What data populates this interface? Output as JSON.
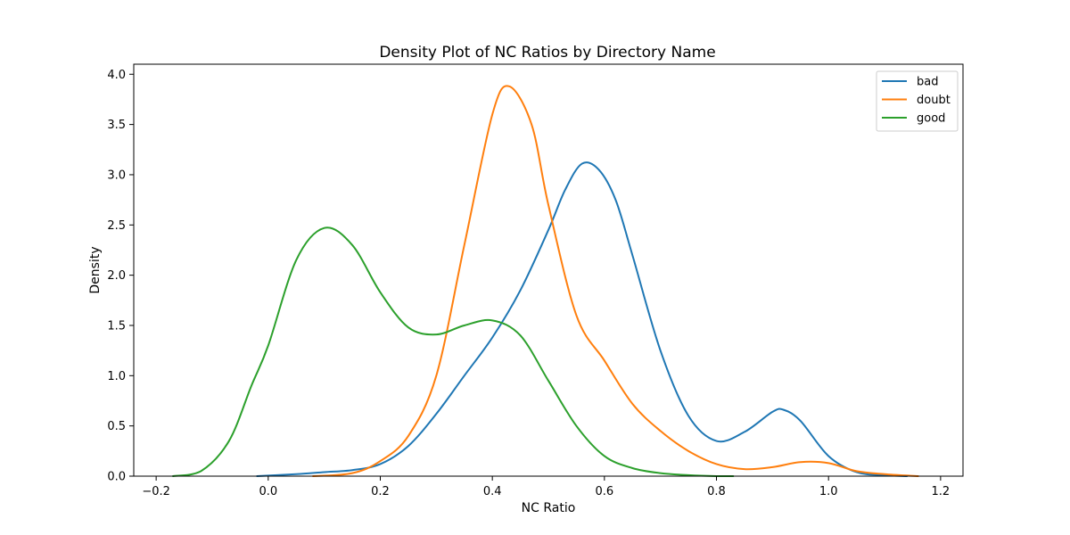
{
  "chart_data": {
    "type": "line",
    "title": "Density Plot of NC Ratios by Directory Name",
    "xlabel": "NC Ratio",
    "ylabel": "Density",
    "xlim": [
      -0.24,
      1.24
    ],
    "ylim": [
      0,
      4.1
    ],
    "xticks": [
      -0.2,
      0.0,
      0.2,
      0.4,
      0.6,
      0.8,
      1.0,
      1.2
    ],
    "xtick_labels": [
      "−0.2",
      "0.0",
      "0.2",
      "0.4",
      "0.6",
      "0.8",
      "1.0",
      "1.2"
    ],
    "yticks": [
      0.0,
      0.5,
      1.0,
      1.5,
      2.0,
      2.5,
      3.0,
      3.5,
      4.0
    ],
    "ytick_labels": [
      "0.0",
      "0.5",
      "1.0",
      "1.5",
      "2.0",
      "2.5",
      "3.0",
      "3.5",
      "4.0"
    ],
    "grid": false,
    "legend_position": "top-right",
    "series": [
      {
        "name": "bad",
        "color": "#1f77b4",
        "x": [
          -0.02,
          0.05,
          0.1,
          0.15,
          0.2,
          0.25,
          0.3,
          0.35,
          0.4,
          0.45,
          0.5,
          0.53,
          0.56,
          0.59,
          0.62,
          0.65,
          0.7,
          0.75,
          0.8,
          0.85,
          0.9,
          0.92,
          0.95,
          1.0,
          1.05,
          1.1,
          1.14
        ],
        "y": [
          0.0,
          0.02,
          0.04,
          0.06,
          0.12,
          0.3,
          0.62,
          1.0,
          1.38,
          1.85,
          2.45,
          2.85,
          3.11,
          3.05,
          2.75,
          2.2,
          1.25,
          0.6,
          0.35,
          0.44,
          0.64,
          0.66,
          0.55,
          0.2,
          0.04,
          0.01,
          0.0
        ]
      },
      {
        "name": "doubt",
        "color": "#ff7f0e",
        "x": [
          0.08,
          0.15,
          0.2,
          0.25,
          0.3,
          0.35,
          0.4,
          0.43,
          0.47,
          0.5,
          0.55,
          0.6,
          0.65,
          0.7,
          0.75,
          0.8,
          0.85,
          0.9,
          0.95,
          1.0,
          1.05,
          1.1,
          1.16
        ],
        "y": [
          0.0,
          0.03,
          0.15,
          0.4,
          1.0,
          2.3,
          3.6,
          3.88,
          3.5,
          2.7,
          1.6,
          1.15,
          0.72,
          0.45,
          0.25,
          0.12,
          0.07,
          0.09,
          0.14,
          0.13,
          0.05,
          0.02,
          0.0
        ]
      },
      {
        "name": "good",
        "color": "#2ca02c",
        "x": [
          -0.17,
          -0.12,
          -0.07,
          -0.03,
          0.0,
          0.05,
          0.1,
          0.15,
          0.2,
          0.25,
          0.3,
          0.35,
          0.4,
          0.45,
          0.5,
          0.55,
          0.6,
          0.65,
          0.7,
          0.75,
          0.8,
          0.83
        ],
        "y": [
          0.0,
          0.05,
          0.35,
          0.9,
          1.3,
          2.15,
          2.47,
          2.3,
          1.83,
          1.48,
          1.41,
          1.5,
          1.55,
          1.4,
          0.95,
          0.5,
          0.2,
          0.08,
          0.03,
          0.01,
          0.0,
          0.0
        ]
      }
    ]
  }
}
